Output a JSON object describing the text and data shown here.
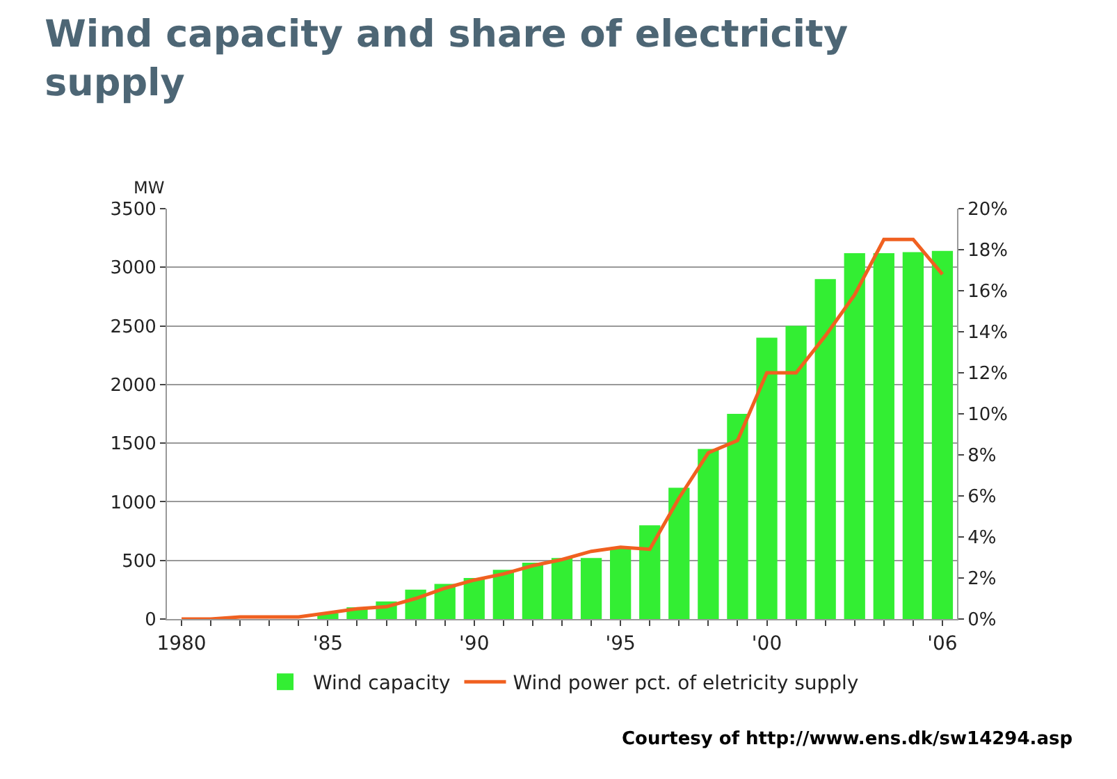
{
  "chart_data": {
    "type": "bar",
    "title": "Wind capacity and share of electricity supply",
    "ylabel": "MW",
    "categories": [
      "1980",
      null,
      null,
      null,
      null,
      "'85",
      null,
      null,
      null,
      null,
      "'90",
      null,
      null,
      null,
      null,
      "'95",
      null,
      null,
      null,
      null,
      "'00",
      null,
      null,
      null,
      null,
      null,
      "'06"
    ],
    "series": [
      {
        "name": "Wind capacity",
        "color": "#33ee33",
        "values": [
          0,
          0,
          0,
          0,
          0,
          50,
          100,
          150,
          250,
          300,
          350,
          420,
          480,
          520,
          520,
          600,
          800,
          1120,
          1450,
          1750,
          2400,
          2500,
          2900,
          3120,
          3120,
          3130,
          3140
        ]
      },
      {
        "name": "Wind power pct. of eletricity supply",
        "type": "line",
        "axis": "y2",
        "color": "#f06020",
        "values": [
          0,
          0,
          0.1,
          0.1,
          0.1,
          0.3,
          0.5,
          0.6,
          1.0,
          1.5,
          1.9,
          2.2,
          2.6,
          2.9,
          3.3,
          3.5,
          3.4,
          5.9,
          8.1,
          8.7,
          12,
          12,
          13.8,
          15.8,
          18.5,
          18.5,
          16.8
        ]
      }
    ],
    "ylim": [
      0,
      3500
    ],
    "yticks": [
      0,
      500,
      1000,
      1500,
      2000,
      2500,
      3000,
      3500
    ],
    "y2lim": [
      0,
      20
    ],
    "y2ticks": [
      {
        "value": 0,
        "label": "0%"
      },
      {
        "value": 2,
        "label": "2%"
      },
      {
        "value": 4,
        "label": "4%"
      },
      {
        "value": 6,
        "label": "6%"
      },
      {
        "value": 8,
        "label": "8%"
      },
      {
        "value": 10,
        "label": "10%"
      },
      {
        "value": 12,
        "label": "12%"
      },
      {
        "value": 14,
        "label": "14%"
      },
      {
        "value": 16,
        "label": "16%"
      },
      {
        "value": 18,
        "label": "18%"
      },
      {
        "value": 20,
        "label": "20%"
      }
    ],
    "grid": "y",
    "legend": "bottom",
    "marker": "none",
    "annotations": [
      "Courtesy of http://www.ens.dk/sw14294.asp"
    ]
  }
}
